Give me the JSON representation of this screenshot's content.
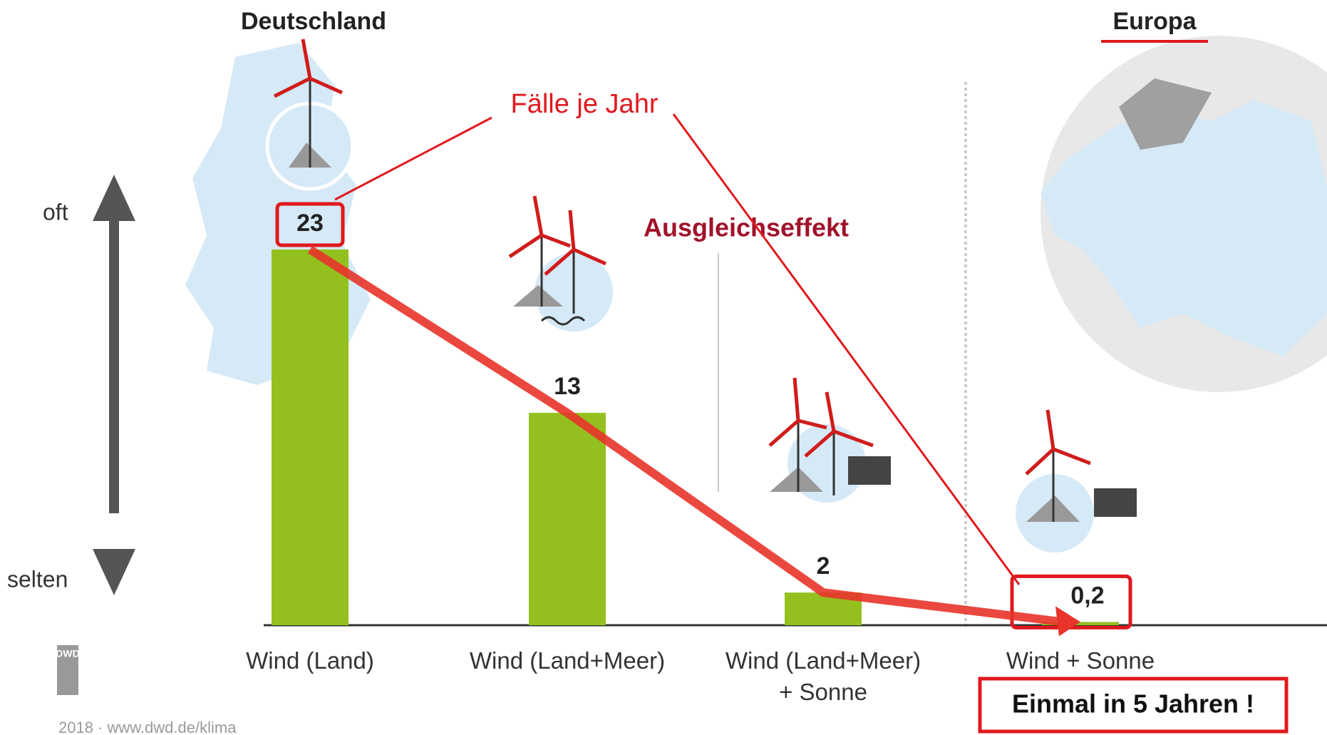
{
  "chart_data": {
    "type": "bar",
    "regions": [
      "Deutschland",
      "Europa"
    ],
    "axis_labels": {
      "high": "oft",
      "low": "selten"
    },
    "categories": [
      "Wind (Land)",
      "Wind (Land+Meer)",
      "Wind (Land+Meer)\n+ Sonne",
      "Wind + Sonne"
    ],
    "values": [
      23,
      13,
      2,
      0.2
    ],
    "value_labels": [
      "23",
      "13",
      "2",
      "0,2"
    ],
    "color": "#93c01f",
    "trend_color": "#e8342a",
    "annotations": {
      "unit": "Fälle je Jahr",
      "effect": "Ausgleichseffekt",
      "callout": "Einmal in 5 Jahren !"
    },
    "logo": {
      "name": "DWD",
      "footer": "2018 · www.dwd.de/klima"
    }
  }
}
